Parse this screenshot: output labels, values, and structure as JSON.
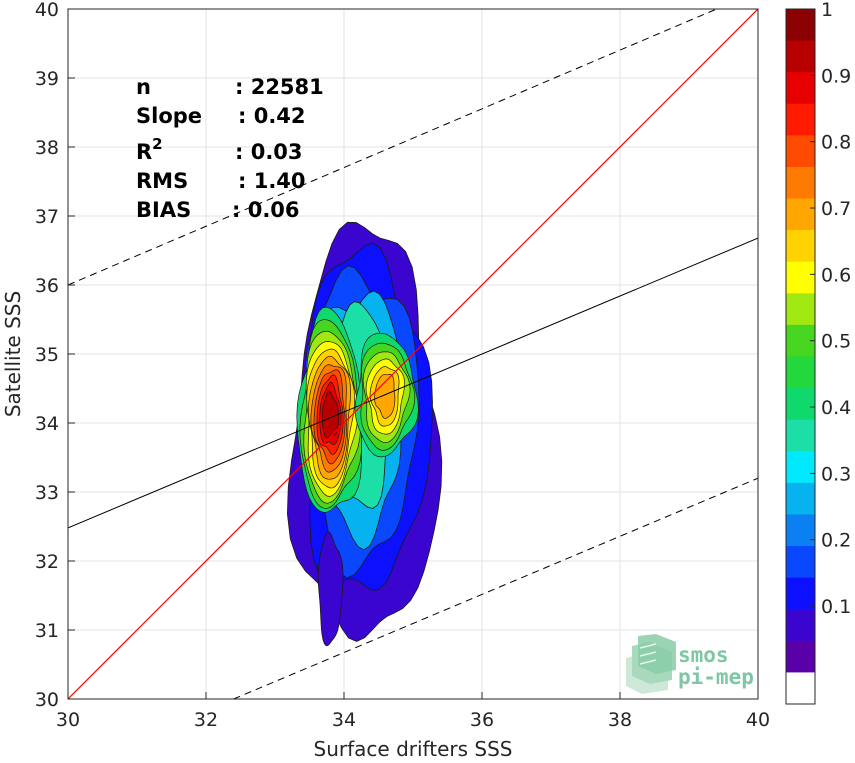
{
  "chart_data": {
    "type": "contour-scatter",
    "xlabel": "Surface drifters SSS",
    "ylabel": "Satellite SSS",
    "xlim": [
      30,
      40
    ],
    "ylim": [
      30,
      40
    ],
    "x_ticks": [
      "30",
      "32",
      "34",
      "36",
      "38",
      "40"
    ],
    "y_ticks": [
      "30",
      "31",
      "32",
      "33",
      "34",
      "35",
      "36",
      "37",
      "38",
      "39",
      "40"
    ],
    "grid": true,
    "stats": [
      {
        "label": "n",
        "value": ": 22581"
      },
      {
        "label": "Slope",
        "value": ": 0.42"
      },
      {
        "label": "R",
        "sup": "2",
        "value": ": 0.03"
      },
      {
        "label": "RMS",
        "value": ": 1.40"
      },
      {
        "label": "BIAS",
        "value": ": 0.06"
      }
    ],
    "identity_line": {
      "color": "#ff0000",
      "from": [
        30,
        30
      ],
      "to": [
        40,
        40
      ]
    },
    "regression_line": {
      "color": "#000000",
      "from": [
        30,
        32.48
      ],
      "to": [
        40,
        36.68
      ]
    },
    "bound_lines": [
      {
        "style": "dashed",
        "from": [
          30,
          36.0
        ],
        "to": [
          39.4,
          40
        ]
      },
      {
        "style": "dashed",
        "from": [
          32.4,
          30
        ],
        "to": [
          40,
          33.2
        ]
      }
    ],
    "density_peaks": [
      {
        "x": 33.8,
        "y": 34.1,
        "level": 0.95
      },
      {
        "x": 34.6,
        "y": 34.4,
        "level": 0.68
      }
    ],
    "colorbar": {
      "min": 0,
      "max": 1,
      "ticks": [
        "0.1",
        "0.2",
        "0.3",
        "0.4",
        "0.5",
        "0.6",
        "0.7",
        "0.8",
        "0.9",
        "1"
      ],
      "colors": [
        "#ffffff",
        "#5a00a8",
        "#3a06cf",
        "#0c10ff",
        "#0a48ff",
        "#0a80f2",
        "#07b2f0",
        "#00e9ff",
        "#1bdfa6",
        "#0fd96c",
        "#23d83c",
        "#47d61f",
        "#a0e810",
        "#ffff00",
        "#ffd200",
        "#ffa600",
        "#ff7a00",
        "#ff4b00",
        "#ff1a00",
        "#e60000",
        "#b80000",
        "#8b0000"
      ]
    }
  },
  "logo": {
    "line1": "smos",
    "line2": "pi-mep"
  }
}
